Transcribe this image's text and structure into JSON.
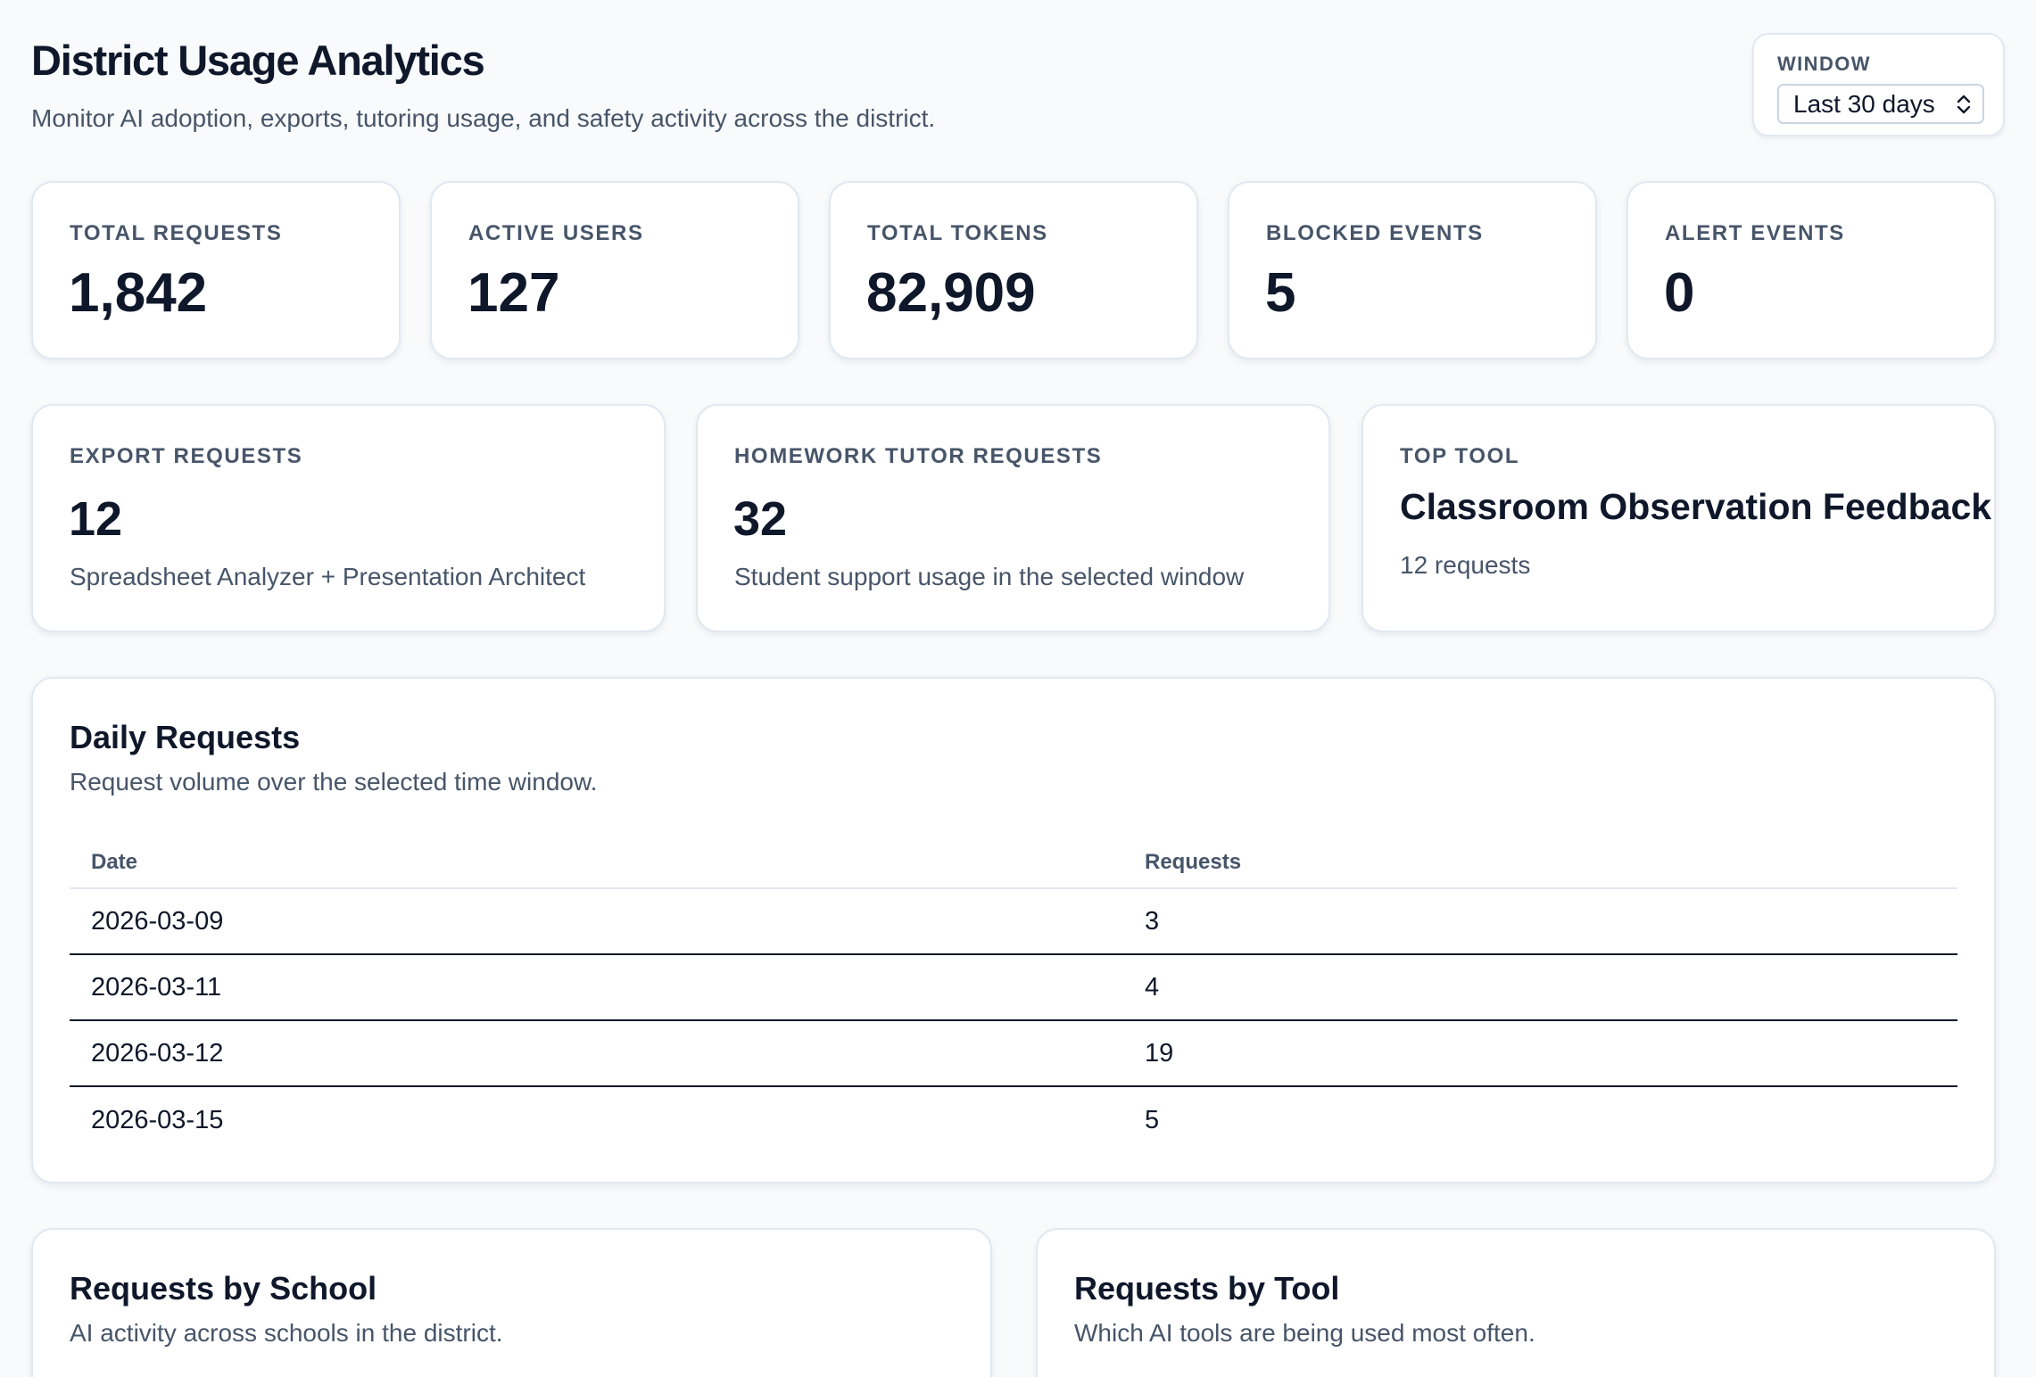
{
  "header": {
    "title": "District Usage Analytics",
    "subtitle": "Monitor AI adoption, exports, tutoring usage, and safety activity across the district."
  },
  "window": {
    "label": "WINDOW",
    "selected": "Last 30 days"
  },
  "metrics": [
    {
      "label": "TOTAL REQUESTS",
      "value": "1,842"
    },
    {
      "label": "ACTIVE USERS",
      "value": "127"
    },
    {
      "label": "TOTAL TOKENS",
      "value": "82,909"
    },
    {
      "label": "BLOCKED EVENTS",
      "value": "5"
    },
    {
      "label": "ALERT EVENTS",
      "value": "0"
    }
  ],
  "secondary": {
    "export": {
      "label": "EXPORT REQUESTS",
      "value": "12",
      "note": "Spreadsheet Analyzer + Presentation Architect"
    },
    "tutor": {
      "label": "HOMEWORK TUTOR REQUESTS",
      "value": "32",
      "note": "Student support usage in the selected window"
    },
    "top_tool": {
      "label": "TOP TOOL",
      "name": "Classroom Observation Feedback",
      "note": "12 requests"
    }
  },
  "daily": {
    "title": "Daily Requests",
    "subtitle": "Request volume over the selected time window.",
    "columns": [
      "Date",
      "Requests"
    ],
    "rows": [
      {
        "date": "2026-03-09",
        "requests": "3"
      },
      {
        "date": "2026-03-11",
        "requests": "4"
      },
      {
        "date": "2026-03-12",
        "requests": "19"
      },
      {
        "date": "2026-03-15",
        "requests": "5"
      }
    ]
  },
  "by_school": {
    "title": "Requests by School",
    "subtitle": "AI activity across schools in the district."
  },
  "by_tool": {
    "title": "Requests by Tool",
    "subtitle": "Which AI tools are being used most often."
  },
  "icons": {
    "select": "chevron-up-down-icon"
  }
}
